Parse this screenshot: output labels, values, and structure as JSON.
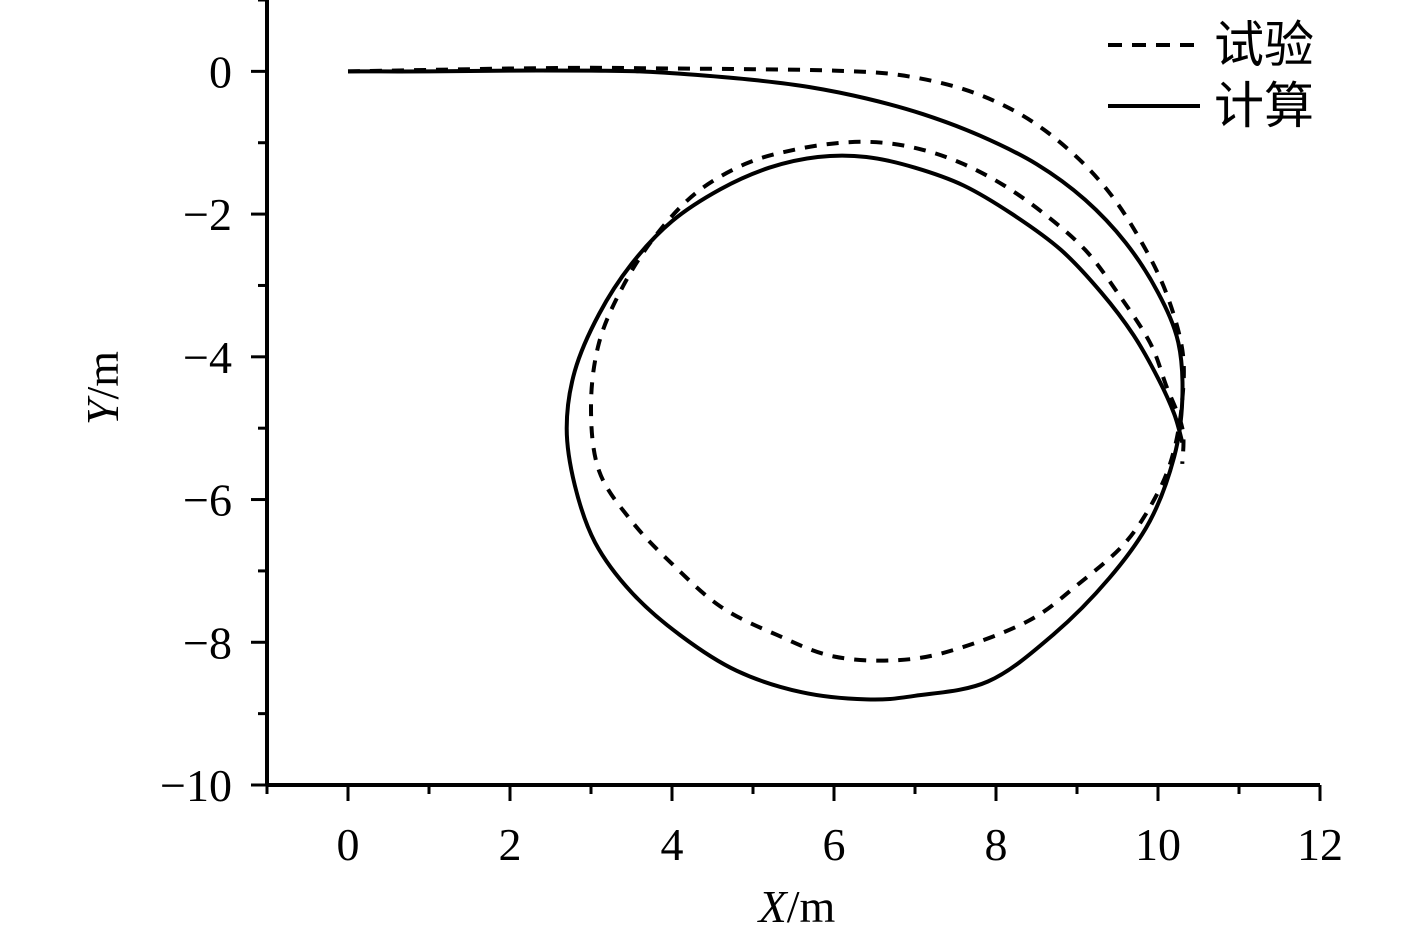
{
  "chart_data": {
    "type": "line",
    "xlabel": {
      "var": "X",
      "unit": "/m"
    },
    "ylabel": {
      "var": "Y",
      "unit": "/m"
    },
    "xlim": [
      -1,
      12
    ],
    "ylim": [
      -10,
      1
    ],
    "xticks": [
      0,
      2,
      4,
      6,
      8,
      10,
      12
    ],
    "xtick_labels": [
      "0",
      "2",
      "4",
      "6",
      "8",
      "10",
      "12"
    ],
    "yticks": [
      0,
      -2,
      -4,
      -6,
      -8,
      -10
    ],
    "ytick_labels": [
      "0",
      "−2",
      "−4",
      "−6",
      "−8",
      "−10"
    ],
    "grid": false,
    "legend": "top-right",
    "series": [
      {
        "name": "试验",
        "style": "dashed",
        "color": "#000000",
        "x": [
          0,
          1,
          2,
          3,
          4,
          5,
          6,
          6.8,
          7.6,
          8.3,
          8.9,
          9.4,
          9.8,
          10.1,
          10.3,
          10.3,
          10.2,
          10.0,
          9.6,
          9.0,
          8.4,
          7.5,
          6.8,
          6.0,
          5.3,
          4.6,
          4.0,
          3.5,
          3.1,
          3.0,
          3.1,
          3.4,
          3.8,
          4.3,
          4.9,
          5.5,
          6.1,
          6.6,
          7.1,
          7.6,
          8.1,
          8.6,
          9.1,
          9.5,
          9.9,
          10.1,
          10.3,
          10.3
        ],
        "y": [
          0,
          0.02,
          0.04,
          0.05,
          0.04,
          0.03,
          0.01,
          -0.05,
          -0.25,
          -0.6,
          -1.1,
          -1.7,
          -2.4,
          -3.1,
          -3.9,
          -4.6,
          -5.3,
          -5.9,
          -6.6,
          -7.2,
          -7.7,
          -8.1,
          -8.25,
          -8.2,
          -7.9,
          -7.5,
          -6.9,
          -6.3,
          -5.6,
          -4.7,
          -3.8,
          -3.0,
          -2.3,
          -1.7,
          -1.3,
          -1.1,
          -1.0,
          -1.0,
          -1.1,
          -1.3,
          -1.6,
          -2.0,
          -2.5,
          -3.1,
          -3.8,
          -4.4,
          -5.0,
          -5.5
        ]
      },
      {
        "name": "计算",
        "style": "solid",
        "color": "#000000",
        "x": [
          0,
          1,
          2,
          3,
          3.6,
          4.3,
          5.0,
          5.7,
          6.4,
          7.1,
          7.8,
          8.5,
          9.1,
          9.6,
          10.0,
          10.25,
          10.3,
          10.2,
          9.9,
          9.4,
          8.7,
          7.9,
          7.0,
          6.4,
          5.6,
          4.8,
          4.1,
          3.5,
          3.05,
          2.8,
          2.7,
          2.8,
          3.1,
          3.5,
          4.0,
          4.6,
          5.2,
          5.8,
          6.4,
          7.0,
          7.6,
          8.2,
          8.8,
          9.3,
          9.7,
          10.0,
          10.2,
          10.3
        ],
        "y": [
          0,
          0.0,
          0.01,
          0.01,
          0.0,
          -0.05,
          -0.12,
          -0.22,
          -0.38,
          -0.6,
          -0.9,
          -1.3,
          -1.8,
          -2.4,
          -3.1,
          -3.8,
          -4.6,
          -5.4,
          -6.3,
          -7.1,
          -7.9,
          -8.55,
          -8.75,
          -8.8,
          -8.7,
          -8.4,
          -7.9,
          -7.3,
          -6.6,
          -5.8,
          -5.0,
          -4.2,
          -3.4,
          -2.7,
          -2.1,
          -1.65,
          -1.35,
          -1.2,
          -1.2,
          -1.35,
          -1.6,
          -2.0,
          -2.5,
          -3.1,
          -3.7,
          -4.3,
          -4.8,
          -5.2
        ]
      }
    ]
  }
}
